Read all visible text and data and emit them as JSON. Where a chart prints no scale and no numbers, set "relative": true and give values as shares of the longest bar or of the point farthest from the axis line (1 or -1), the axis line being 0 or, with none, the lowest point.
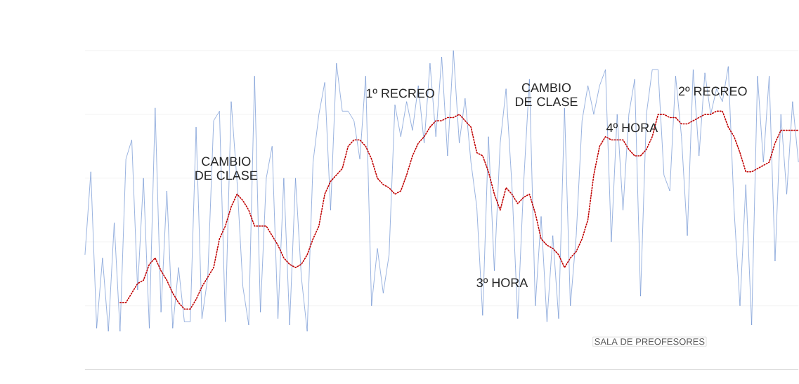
{
  "chart_data": {
    "type": "line",
    "relative": true,
    "grid": "y",
    "marker": "none",
    "categories": [
      null,
      null,
      null,
      null,
      null,
      null,
      null,
      null,
      null,
      null,
      null,
      null,
      null,
      null,
      null,
      null,
      null,
      null,
      null,
      null,
      null,
      null,
      null,
      null,
      null,
      null,
      null,
      null,
      null,
      null,
      null,
      null,
      null,
      null,
      null,
      null,
      null,
      null,
      null,
      null,
      null,
      null,
      null,
      null,
      null,
      null,
      null,
      null,
      null,
      null,
      null,
      null,
      null,
      null,
      null,
      null,
      null,
      null,
      null,
      null,
      null,
      null,
      null,
      null,
      null,
      null,
      null,
      null,
      null,
      null,
      null,
      null,
      null,
      null,
      null,
      null,
      null,
      null,
      null,
      null,
      null,
      null,
      null,
      null,
      null,
      null,
      null,
      null,
      null,
      null,
      null,
      null,
      null,
      null,
      null,
      null,
      null,
      null,
      null,
      null,
      null,
      null,
      null,
      null,
      null,
      null,
      null,
      null,
      null,
      null,
      null,
      null,
      null,
      null,
      null,
      null,
      null,
      null,
      null,
      null,
      null,
      null,
      null
    ],
    "series": [
      {
        "color": "#6f93d3",
        "line_style": "solid",
        "values": [
          0.36,
          0.62,
          0.13,
          0.35,
          0.12,
          0.46,
          0.12,
          0.66,
          0.72,
          0.25,
          0.6,
          0.13,
          0.82,
          0.18,
          0.56,
          0.13,
          0.32,
          0.15,
          0.15,
          0.76,
          0.16,
          0.29,
          0.78,
          0.81,
          0.15,
          0.84,
          0.59,
          0.26,
          0.14,
          0.92,
          0.18,
          0.6,
          0.7,
          0.16,
          0.6,
          0.14,
          0.6,
          0.29,
          0.12,
          0.65,
          0.8,
          0.9,
          0.5,
          0.96,
          0.81,
          0.81,
          0.78,
          0.66,
          0.92,
          0.2,
          0.38,
          0.24,
          0.36,
          0.83,
          0.73,
          0.84,
          0.75,
          0.89,
          0.71,
          0.96,
          0.73,
          0.98,
          0.67,
          1.0,
          0.71,
          0.85,
          0.65,
          0.51,
          0.17,
          0.73,
          0.31,
          0.71,
          0.88,
          0.58,
          0.16,
          0.58,
          0.91,
          0.2,
          0.48,
          0.15,
          0.42,
          0.16,
          0.82,
          0.2,
          0.42,
          0.78,
          0.89,
          0.8,
          0.89,
          0.94,
          0.4,
          0.8,
          0.5,
          0.8,
          0.91,
          0.23,
          0.8,
          0.94,
          0.94,
          0.61,
          0.56,
          0.92,
          0.73,
          0.42,
          0.94,
          0.67,
          0.93,
          0.8,
          0.88,
          0.84,
          0.95,
          0.5,
          0.2,
          0.58,
          0.14,
          0.92,
          0.65,
          0.92,
          0.34,
          0.8,
          0.55,
          0.84,
          0.65
        ]
      },
      {
        "color": "#c00000",
        "line_style": "dotted",
        "values": [
          null,
          null,
          null,
          null,
          null,
          null,
          0.21,
          0.21,
          0.24,
          0.27,
          0.28,
          0.33,
          0.35,
          0.31,
          0.28,
          0.24,
          0.21,
          0.19,
          0.19,
          0.22,
          0.26,
          0.29,
          0.32,
          0.41,
          0.45,
          0.51,
          0.55,
          0.53,
          0.5,
          0.45,
          0.45,
          0.45,
          0.42,
          0.39,
          0.35,
          0.33,
          0.32,
          0.33,
          0.36,
          0.41,
          0.45,
          0.55,
          0.59,
          0.61,
          0.63,
          0.7,
          0.72,
          0.72,
          0.7,
          0.66,
          0.6,
          0.58,
          0.57,
          0.55,
          0.56,
          0.61,
          0.67,
          0.71,
          0.73,
          0.76,
          0.78,
          0.78,
          0.79,
          0.79,
          0.8,
          0.78,
          0.76,
          0.68,
          0.67,
          0.62,
          0.55,
          0.5,
          0.57,
          0.55,
          0.52,
          0.54,
          0.55,
          0.49,
          0.41,
          0.39,
          0.38,
          0.36,
          0.32,
          0.35,
          0.37,
          0.41,
          0.47,
          0.61,
          0.7,
          0.73,
          0.72,
          0.72,
          0.72,
          0.69,
          0.67,
          0.67,
          0.69,
          0.73,
          0.8,
          0.8,
          0.79,
          0.79,
          0.77,
          0.77,
          0.78,
          0.79,
          0.8,
          0.8,
          0.81,
          0.81,
          0.76,
          0.73,
          0.68,
          0.62,
          0.62,
          0.63,
          0.64,
          0.65,
          0.71,
          0.75,
          0.75,
          0.75,
          0.75
        ]
      }
    ],
    "annotations": [
      "CAMBIO DE CLASE",
      "1º RECREO",
      "CAMBIO DE CLASE",
      "4º HORA",
      "2º RECREO",
      "3º HORA",
      "SALA DE PREOFESORES"
    ]
  }
}
